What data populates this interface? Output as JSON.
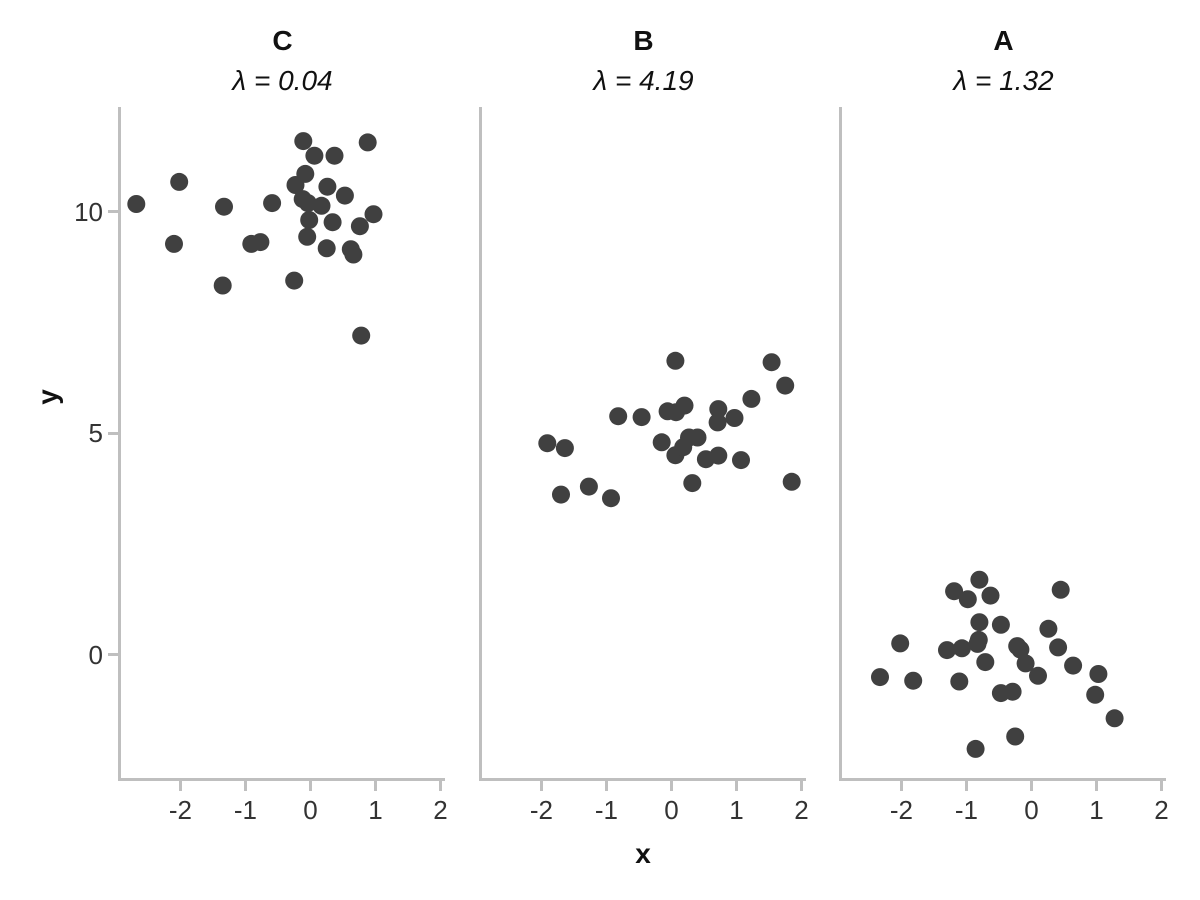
{
  "chart_data": {
    "type": "scatter",
    "xlabel": "x",
    "ylabel": "y",
    "xlim": [
      -2.93,
      2.07
    ],
    "ylim": [
      -2.8,
      12.37
    ],
    "x_tick_values": [
      -2,
      -1,
      0,
      1,
      2
    ],
    "x_tick_labels": [
      "-2",
      "-1",
      "0",
      "1",
      "2"
    ],
    "y_tick_values": [
      0,
      5,
      10
    ],
    "y_tick_labels": [
      "0",
      "5",
      "10"
    ],
    "grid": "off",
    "legend": "none",
    "point_color": "#404040",
    "axis_color": "#bfbfbf",
    "text_color": "#1a1a1a",
    "panels": [
      {
        "title": "C",
        "subtitle": "λ = 0.04",
        "lambda": 0.04,
        "points": [
          [
            -2.68,
            10.18
          ],
          [
            -2.02,
            10.68
          ],
          [
            -2.1,
            9.28
          ],
          [
            -1.33,
            10.12
          ],
          [
            -1.35,
            8.34
          ],
          [
            -0.91,
            9.28
          ],
          [
            -0.77,
            9.32
          ],
          [
            -0.59,
            10.2
          ],
          [
            -0.25,
            8.45
          ],
          [
            -0.23,
            10.61
          ],
          [
            -0.11,
            11.6
          ],
          [
            -0.08,
            10.86
          ],
          [
            -0.12,
            10.29
          ],
          [
            -0.04,
            10.2
          ],
          [
            -0.02,
            9.82
          ],
          [
            -0.05,
            9.44
          ],
          [
            0.06,
            11.27
          ],
          [
            0.17,
            10.14
          ],
          [
            0.26,
            10.57
          ],
          [
            0.25,
            9.18
          ],
          [
            0.37,
            11.27
          ],
          [
            0.34,
            9.77
          ],
          [
            0.53,
            10.37
          ],
          [
            0.62,
            9.16
          ],
          [
            0.66,
            9.04
          ],
          [
            0.76,
            9.68
          ],
          [
            0.78,
            7.21
          ],
          [
            0.88,
            11.57
          ],
          [
            0.97,
            9.95
          ]
        ]
      },
      {
        "title": "B",
        "subtitle": "λ = 4.19",
        "lambda": 4.19,
        "points": [
          [
            -1.91,
            4.78
          ],
          [
            -1.64,
            4.67
          ],
          [
            -1.7,
            3.62
          ],
          [
            -1.27,
            3.8
          ],
          [
            -0.93,
            3.54
          ],
          [
            -0.82,
            5.39
          ],
          [
            -0.46,
            5.37
          ],
          [
            -0.15,
            4.8
          ],
          [
            -0.06,
            5.5
          ],
          [
            0.06,
            6.64
          ],
          [
            0.07,
            5.48
          ],
          [
            0.06,
            4.51
          ],
          [
            0.18,
            4.69
          ],
          [
            0.2,
            5.63
          ],
          [
            0.27,
            4.91
          ],
          [
            0.4,
            4.91
          ],
          [
            0.32,
            3.88
          ],
          [
            0.53,
            4.42
          ],
          [
            0.72,
            5.55
          ],
          [
            0.71,
            5.25
          ],
          [
            0.72,
            4.5
          ],
          [
            0.97,
            5.35
          ],
          [
            1.07,
            4.4
          ],
          [
            1.23,
            5.78
          ],
          [
            1.54,
            6.61
          ],
          [
            1.75,
            6.08
          ],
          [
            1.85,
            3.91
          ]
        ]
      },
      {
        "title": "A",
        "subtitle": "λ = 1.32",
        "lambda": 1.32,
        "points": [
          [
            -2.33,
            -0.5
          ],
          [
            -2.02,
            0.26
          ],
          [
            -1.82,
            -0.58
          ],
          [
            -1.3,
            0.11
          ],
          [
            -1.19,
            1.44
          ],
          [
            -1.07,
            0.15
          ],
          [
            -0.98,
            1.26
          ],
          [
            -1.11,
            -0.6
          ],
          [
            -0.86,
            -2.12
          ],
          [
            -0.83,
            0.25
          ],
          [
            -0.8,
            1.7
          ],
          [
            -0.81,
            0.34
          ],
          [
            -0.8,
            0.74
          ],
          [
            -0.71,
            -0.16
          ],
          [
            -0.63,
            1.34
          ],
          [
            -0.47,
            0.68
          ],
          [
            -0.47,
            -0.86
          ],
          [
            -0.29,
            -0.83
          ],
          [
            -0.25,
            -1.84
          ],
          [
            -0.22,
            0.2
          ],
          [
            -0.17,
            0.12
          ],
          [
            -0.09,
            -0.19
          ],
          [
            0.1,
            -0.47
          ],
          [
            0.26,
            0.59
          ],
          [
            0.41,
            0.17
          ],
          [
            0.45,
            1.47
          ],
          [
            0.64,
            -0.24
          ],
          [
            0.98,
            -0.9
          ],
          [
            1.03,
            -0.43
          ],
          [
            1.28,
            -1.43
          ]
        ]
      }
    ]
  }
}
